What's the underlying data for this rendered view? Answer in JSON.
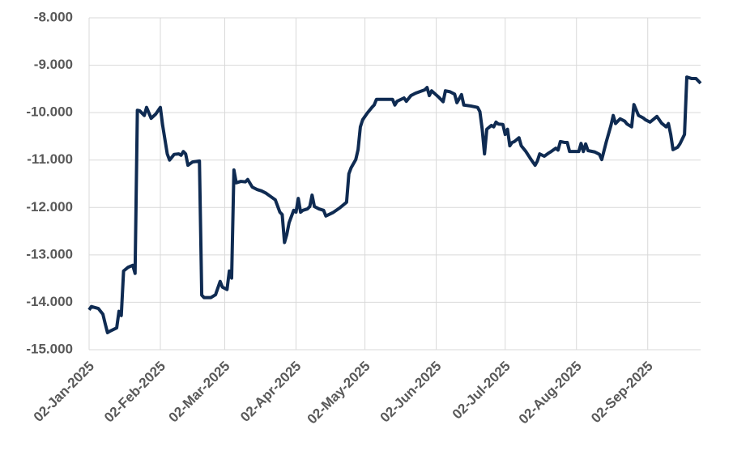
{
  "chart_data": {
    "type": "line",
    "xlim": [
      "2025-01-02",
      "2025-09-25"
    ],
    "xticks": [
      {
        "value": "2025-01-02",
        "label": "02-Jan-2025"
      },
      {
        "value": "2025-02-02",
        "label": "02-Feb-2025"
      },
      {
        "value": "2025-03-02",
        "label": "02-Mar-2025"
      },
      {
        "value": "2025-04-02",
        "label": "02-Apr-2025"
      },
      {
        "value": "2025-05-02",
        "label": "02-May-2025"
      },
      {
        "value": "2025-06-02",
        "label": "02-Jun-2025"
      },
      {
        "value": "2025-07-02",
        "label": "02-Jul-2025"
      },
      {
        "value": "2025-08-02",
        "label": "02-Aug-2025"
      },
      {
        "value": "2025-09-02",
        "label": "02-Sep-2025"
      }
    ],
    "ylim": [
      -15000,
      -8000
    ],
    "yticks": [
      {
        "value": -15000,
        "label": "-15.000"
      },
      {
        "value": -14000,
        "label": "-14.000"
      },
      {
        "value": -13000,
        "label": "-13.000"
      },
      {
        "value": -12000,
        "label": "-12.000"
      },
      {
        "value": -11000,
        "label": "-11.000"
      },
      {
        "value": -10000,
        "label": "-10.000"
      },
      {
        "value": -9000,
        "label": "-9.000"
      },
      {
        "value": -8000,
        "label": "-8.000"
      }
    ],
    "grid": true,
    "x": [
      "2025-01-02",
      "2025-01-03",
      "2025-01-06",
      "2025-01-08",
      "2025-01-09",
      "2025-01-10",
      "2025-01-11",
      "2025-01-14",
      "2025-01-15",
      "2025-01-16",
      "2025-01-17",
      "2025-01-19",
      "2025-01-21",
      "2025-01-22",
      "2025-01-23",
      "2025-01-24",
      "2025-01-26",
      "2025-01-27",
      "2025-01-29",
      "2025-01-31",
      "2025-02-02",
      "2025-02-03",
      "2025-02-05",
      "2025-02-06",
      "2025-02-08",
      "2025-02-10",
      "2025-02-11",
      "2025-02-12",
      "2025-02-13",
      "2025-02-14",
      "2025-02-16",
      "2025-02-19",
      "2025-02-20",
      "2025-02-21",
      "2025-02-24",
      "2025-02-26",
      "2025-02-28",
      "2025-03-01",
      "2025-03-03",
      "2025-03-04",
      "2025-03-05",
      "2025-03-06",
      "2025-03-07",
      "2025-03-09",
      "2025-03-11",
      "2025-03-12",
      "2025-03-14",
      "2025-03-16",
      "2025-03-18",
      "2025-03-20",
      "2025-03-22",
      "2025-03-24",
      "2025-03-26",
      "2025-03-27",
      "2025-03-28",
      "2025-03-29",
      "2025-03-30",
      "2025-04-01",
      "2025-04-02",
      "2025-04-03",
      "2025-04-04",
      "2025-04-05",
      "2025-04-07",
      "2025-04-08",
      "2025-04-09",
      "2025-04-10",
      "2025-04-12",
      "2025-04-14",
      "2025-04-15",
      "2025-04-18",
      "2025-04-21",
      "2025-04-24",
      "2025-04-25",
      "2025-04-26",
      "2025-04-28",
      "2025-04-29",
      "2025-04-30",
      "2025-05-01",
      "2025-05-03",
      "2025-05-05",
      "2025-05-06",
      "2025-05-07",
      "2025-05-09",
      "2025-05-12",
      "2025-05-14",
      "2025-05-15",
      "2025-05-16",
      "2025-05-19",
      "2025-05-20",
      "2025-05-22",
      "2025-05-24",
      "2025-05-28",
      "2025-05-29",
      "2025-05-30",
      "2025-05-31",
      "2025-06-03",
      "2025-06-05",
      "2025-06-06",
      "2025-06-08",
      "2025-06-10",
      "2025-06-11",
      "2025-06-13",
      "2025-06-14",
      "2025-06-17",
      "2025-06-20",
      "2025-06-21",
      "2025-06-22",
      "2025-06-23",
      "2025-06-24",
      "2025-06-26",
      "2025-06-27",
      "2025-06-28",
      "2025-06-29",
      "2025-07-01",
      "2025-07-02",
      "2025-07-03",
      "2025-07-04",
      "2025-07-05",
      "2025-07-06",
      "2025-07-08",
      "2025-07-09",
      "2025-07-11",
      "2025-07-13",
      "2025-07-15",
      "2025-07-16",
      "2025-07-17",
      "2025-07-19",
      "2025-07-21",
      "2025-07-22",
      "2025-07-24",
      "2025-07-25",
      "2025-07-26",
      "2025-07-28",
      "2025-07-29",
      "2025-07-30",
      "2025-08-01",
      "2025-08-03",
      "2025-08-04",
      "2025-08-05",
      "2025-08-06",
      "2025-08-07",
      "2025-08-10",
      "2025-08-12",
      "2025-08-13",
      "2025-08-15",
      "2025-08-17",
      "2025-08-18",
      "2025-08-19",
      "2025-08-21",
      "2025-08-23",
      "2025-08-24",
      "2025-08-26",
      "2025-08-27",
      "2025-08-29",
      "2025-08-31",
      "2025-09-01",
      "2025-09-03",
      "2025-09-05",
      "2025-09-06",
      "2025-09-07",
      "2025-09-08",
      "2025-09-10",
      "2025-09-11",
      "2025-09-12",
      "2025-09-13",
      "2025-09-15",
      "2025-09-16",
      "2025-09-18",
      "2025-09-19",
      "2025-09-21",
      "2025-09-23",
      "2025-09-25"
    ],
    "series": [
      {
        "color": "#0f2b52",
        "values": [
          -14160,
          -14090,
          -14130,
          -14250,
          -14450,
          -14640,
          -14610,
          -14540,
          -14190,
          -14280,
          -13340,
          -13260,
          -13220,
          -13390,
          -9950,
          -9960,
          -10060,
          -9890,
          -10120,
          -10030,
          -9890,
          -10270,
          -10870,
          -11000,
          -10880,
          -10870,
          -10900,
          -10820,
          -10870,
          -11110,
          -11040,
          -11020,
          -13850,
          -13900,
          -13900,
          -13840,
          -13560,
          -13680,
          -13730,
          -13340,
          -13490,
          -11210,
          -11480,
          -11450,
          -11460,
          -11410,
          -11570,
          -11620,
          -11650,
          -11700,
          -11770,
          -11840,
          -12100,
          -12150,
          -12740,
          -12570,
          -12320,
          -12060,
          -12100,
          -11810,
          -12100,
          -12060,
          -12030,
          -11980,
          -11740,
          -11980,
          -12030,
          -12060,
          -12180,
          -12110,
          -12010,
          -11890,
          -11290,
          -11160,
          -10990,
          -10780,
          -10300,
          -10150,
          -10010,
          -9890,
          -9840,
          -9720,
          -9720,
          -9720,
          -9720,
          -9840,
          -9760,
          -9690,
          -9760,
          -9640,
          -9590,
          -9520,
          -9470,
          -9640,
          -9540,
          -9670,
          -9770,
          -9540,
          -9560,
          -9610,
          -9790,
          -9620,
          -9840,
          -9860,
          -9890,
          -9980,
          -10350,
          -10870,
          -10350,
          -10270,
          -10300,
          -10200,
          -10240,
          -10250,
          -10460,
          -10350,
          -10700,
          -10630,
          -10610,
          -10530,
          -10700,
          -10820,
          -10970,
          -11110,
          -11020,
          -10870,
          -10920,
          -10850,
          -10820,
          -10750,
          -10790,
          -10610,
          -10630,
          -10630,
          -10820,
          -10820,
          -10820,
          -10650,
          -10820,
          -10660,
          -10800,
          -10830,
          -10880,
          -10990,
          -10610,
          -10270,
          -10060,
          -10230,
          -10130,
          -10180,
          -10240,
          -10300,
          -9830,
          -10060,
          -10110,
          -10150,
          -10200,
          -10120,
          -10080,
          -10150,
          -10220,
          -10300,
          -10230,
          -10460,
          -10780,
          -10730,
          -10660,
          -10460,
          -9250,
          -9280,
          -9280,
          -9380
        ]
      }
    ]
  }
}
